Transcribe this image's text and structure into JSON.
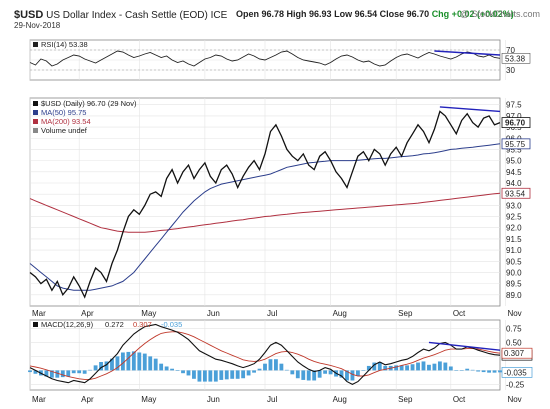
{
  "header": {
    "symbol": "$USD",
    "name": "US Dollar Index - Cash Settle (EOD) ICE",
    "date": "29-Nov-2018",
    "brand": "@ StockCharts.com",
    "open": "Open 96.78",
    "high": "High 96.93",
    "low": "Low 96.54",
    "close": "Close 96.70",
    "change": "Chg +0.02 (+0.02%)"
  },
  "colors": {
    "price": "#111111",
    "ma50": "#2c3e8c",
    "ma200": "#b03040",
    "rsi": "#222222",
    "macd": "#111111",
    "signal": "#c0392b",
    "hist": "#4a9fd8",
    "trend": "#2222bb",
    "grid": "#e4e4e4"
  },
  "chart_data": [
    {
      "type": "line",
      "panel": "rsi",
      "legend": "RSI(14) 53.38",
      "ylim": [
        10,
        90
      ],
      "yticks": [
        "70",
        "50",
        "30"
      ],
      "last": "53.38",
      "reference_lines": [
        70,
        30
      ],
      "values": [
        45,
        40,
        52,
        48,
        38,
        42,
        50,
        55,
        60,
        58,
        52,
        48,
        44,
        50,
        56,
        62,
        68,
        66,
        60,
        55,
        58,
        62,
        65,
        60,
        55,
        58,
        50,
        45,
        48,
        42,
        38,
        45,
        52,
        55,
        60,
        58,
        52,
        48,
        50,
        56,
        62,
        58,
        52,
        50,
        55,
        60,
        66,
        68,
        62,
        55,
        50,
        48,
        46,
        44,
        40,
        45,
        52,
        58,
        60,
        56,
        50,
        46,
        48,
        42,
        38,
        40,
        48,
        55,
        60,
        62,
        58,
        54,
        60,
        65,
        62,
        58,
        55,
        52,
        56,
        62,
        66,
        64,
        58,
        56,
        60,
        55,
        53.38
      ],
      "trendline": [
        [
          74,
          68
        ],
        [
          86,
          60
        ]
      ]
    },
    {
      "type": "line",
      "panel": "price",
      "legend": [
        "$USD (Daily) 96.70 (29 Nov)",
        "MA(50) 95.75",
        "MA(200) 93.54",
        "Volume undef"
      ],
      "ylim": [
        88.5,
        97.8
      ],
      "yticks": [
        "97.5",
        "97.0",
        "96.5",
        "96.0",
        "95.5",
        "95.0",
        "94.5",
        "94.0",
        "93.5",
        "93.0",
        "92.5",
        "92.0",
        "91.5",
        "91.0",
        "90.5",
        "90.0",
        "89.5",
        "89.0"
      ],
      "series": [
        {
          "name": "$USD (Daily) 96.70 (29 Nov)",
          "last": "96.70",
          "values": [
            90.0,
            89.8,
            89.5,
            89.7,
            89.2,
            89.6,
            89.0,
            89.3,
            89.8,
            89.4,
            88.9,
            89.6,
            90.2,
            90.0,
            89.6,
            90.4,
            91.0,
            91.8,
            92.5,
            92.8,
            92.6,
            93.0,
            93.5,
            93.6,
            93.4,
            94.2,
            94.6,
            94.0,
            94.5,
            94.8,
            94.2,
            94.6,
            94.9,
            94.3,
            94.0,
            94.6,
            94.8,
            94.4,
            93.8,
            94.3,
            94.7,
            95.0,
            94.6,
            95.3,
            96.3,
            96.6,
            96.1,
            95.5,
            95.2,
            95.0,
            95.3,
            94.8,
            94.6,
            95.2,
            95.4,
            95.0,
            94.5,
            94.2,
            93.8,
            94.5,
            95.2,
            95.4,
            95.0,
            95.5,
            95.3,
            94.8,
            95.3,
            95.6,
            95.2,
            95.8,
            96.2,
            96.6,
            96.3,
            95.8,
            96.4,
            97.2,
            97.0,
            96.6,
            96.2,
            96.8,
            97.1,
            96.7,
            96.5,
            96.9,
            97.0,
            96.6,
            96.7
          ]
        },
        {
          "name": "MA(50) 95.75",
          "last": "95.75",
          "values": [
            90.4,
            90.2,
            90.0,
            89.8,
            89.6,
            89.4,
            89.3,
            89.25,
            89.2,
            89.2,
            89.2,
            89.2,
            89.25,
            89.3,
            89.35,
            89.4,
            89.5,
            89.6,
            89.8,
            90.0,
            90.3,
            90.6,
            90.9,
            91.2,
            91.5,
            91.8,
            92.1,
            92.4,
            92.7,
            92.95,
            93.2,
            93.4,
            93.6,
            93.75,
            93.85,
            93.95,
            94.0,
            94.05,
            94.1,
            94.15,
            94.2,
            94.25,
            94.3,
            94.35,
            94.4,
            94.5,
            94.6,
            94.7,
            94.75,
            94.8,
            94.85,
            94.9,
            94.92,
            94.95,
            94.97,
            95.0,
            95.0,
            95.0,
            95.0,
            95.0,
            95.02,
            95.04,
            95.06,
            95.08,
            95.1,
            95.1,
            95.12,
            95.15,
            95.18,
            95.2,
            95.22,
            95.25,
            95.3,
            95.32,
            95.35,
            95.4,
            95.45,
            95.5,
            95.52,
            95.55,
            95.58,
            95.6,
            95.63,
            95.66,
            95.69,
            95.72,
            95.75
          ]
        },
        {
          "name": "MA(200) 93.54",
          "last": "93.54",
          "values": [
            93.3,
            93.2,
            93.1,
            93.0,
            92.9,
            92.8,
            92.7,
            92.6,
            92.5,
            92.4,
            92.3,
            92.2,
            92.1,
            92.0,
            91.95,
            91.9,
            91.85,
            91.82,
            91.8,
            91.8,
            91.8,
            91.8,
            91.82,
            91.85,
            91.88,
            91.9,
            91.93,
            91.96,
            92.0,
            92.03,
            92.06,
            92.1,
            92.13,
            92.16,
            92.2,
            92.23,
            92.26,
            92.3,
            92.33,
            92.36,
            92.4,
            92.43,
            92.46,
            92.5,
            92.52,
            92.55,
            92.58,
            92.6,
            92.63,
            92.66,
            92.68,
            92.7,
            92.72,
            92.74,
            92.76,
            92.78,
            92.8,
            92.82,
            92.84,
            92.86,
            92.88,
            92.9,
            92.92,
            92.94,
            92.96,
            92.98,
            93.0,
            93.02,
            93.04,
            93.06,
            93.08,
            93.1,
            93.13,
            93.16,
            93.19,
            93.22,
            93.25,
            93.28,
            93.31,
            93.34,
            93.37,
            93.4,
            93.43,
            93.46,
            93.49,
            93.52,
            93.54
          ]
        }
      ],
      "trendline": [
        [
          75,
          97.4
        ],
        [
          86,
          97.2
        ]
      ]
    },
    {
      "type": "line",
      "panel": "macd",
      "legend": [
        "MACD(12,26,9)",
        "0.272",
        "0.307",
        "-0.035"
      ],
      "ylim": [
        -0.35,
        0.9
      ],
      "yticks": [
        "0.75",
        "0.50",
        "0.25",
        "0.00",
        "-0.25"
      ],
      "last": [
        "0.272",
        "0.307",
        "-0.035"
      ],
      "series": [
        {
          "name": "MACD(12,26,9)",
          "values": [
            0.05,
            0.0,
            -0.05,
            -0.1,
            -0.15,
            -0.18,
            -0.2,
            -0.22,
            -0.18,
            -0.2,
            -0.22,
            -0.15,
            -0.05,
            0.05,
            0.1,
            0.2,
            0.3,
            0.45,
            0.55,
            0.65,
            0.72,
            0.78,
            0.8,
            0.82,
            0.78,
            0.75,
            0.72,
            0.68,
            0.62,
            0.55,
            0.45,
            0.35,
            0.3,
            0.25,
            0.2,
            0.18,
            0.15,
            0.12,
            0.08,
            0.05,
            0.08,
            0.12,
            0.2,
            0.32,
            0.45,
            0.5,
            0.45,
            0.35,
            0.25,
            0.15,
            0.08,
            0.02,
            -0.02,
            0.0,
            0.05,
            0.02,
            -0.05,
            -0.1,
            -0.2,
            -0.25,
            -0.2,
            -0.1,
            0.0,
            0.1,
            0.15,
            0.1,
            0.12,
            0.15,
            0.18,
            0.2,
            0.25,
            0.32,
            0.38,
            0.35,
            0.4,
            0.48,
            0.5,
            0.45,
            0.38,
            0.38,
            0.42,
            0.4,
            0.36,
            0.33,
            0.3,
            0.28,
            0.272
          ]
        },
        {
          "name": "0.307",
          "values": [
            0.08,
            0.06,
            0.04,
            0.01,
            -0.02,
            -0.05,
            -0.08,
            -0.11,
            -0.13,
            -0.15,
            -0.16,
            -0.16,
            -0.14,
            -0.1,
            -0.06,
            -0.01,
            0.05,
            0.13,
            0.22,
            0.31,
            0.4,
            0.48,
            0.55,
            0.61,
            0.66,
            0.68,
            0.69,
            0.69,
            0.67,
            0.64,
            0.6,
            0.55,
            0.5,
            0.45,
            0.4,
            0.35,
            0.31,
            0.27,
            0.23,
            0.19,
            0.17,
            0.16,
            0.17,
            0.2,
            0.25,
            0.3,
            0.33,
            0.34,
            0.32,
            0.29,
            0.25,
            0.2,
            0.16,
            0.13,
            0.11,
            0.09,
            0.06,
            0.03,
            -0.02,
            -0.07,
            -0.1,
            -0.1,
            -0.08,
            -0.04,
            0.0,
            0.02,
            0.04,
            0.06,
            0.09,
            0.11,
            0.14,
            0.18,
            0.22,
            0.25,
            0.28,
            0.32,
            0.36,
            0.38,
            0.38,
            0.38,
            0.39,
            0.39,
            0.38,
            0.36,
            0.34,
            0.32,
            0.307
          ]
        },
        {
          "name": "-0.035",
          "values": [
            -0.03,
            -0.06,
            -0.09,
            -0.11,
            -0.13,
            -0.13,
            -0.12,
            -0.11,
            -0.05,
            -0.05,
            -0.06,
            0.01,
            0.09,
            0.15,
            0.16,
            0.21,
            0.25,
            0.32,
            0.33,
            0.34,
            0.32,
            0.3,
            0.25,
            0.21,
            0.12,
            0.07,
            0.03,
            -0.01,
            -0.05,
            -0.09,
            -0.15,
            -0.2,
            -0.2,
            -0.2,
            -0.2,
            -0.17,
            -0.16,
            -0.15,
            -0.15,
            -0.14,
            -0.09,
            -0.04,
            0.03,
            0.12,
            0.2,
            0.2,
            0.12,
            0.01,
            -0.07,
            -0.14,
            -0.17,
            -0.18,
            -0.18,
            -0.13,
            -0.06,
            -0.07,
            -0.11,
            -0.13,
            -0.18,
            -0.18,
            -0.1,
            0.0,
            0.08,
            0.14,
            0.15,
            0.08,
            0.08,
            0.09,
            0.09,
            0.09,
            0.11,
            0.14,
            0.16,
            0.1,
            0.12,
            0.16,
            0.14,
            0.07,
            0.0,
            0.0,
            0.03,
            0.01,
            -0.02,
            -0.03,
            -0.04,
            -0.04,
            -0.035
          ]
        }
      ],
      "trendline": [
        [
          73,
          0.5
        ],
        [
          86,
          0.36
        ]
      ]
    }
  ],
  "x_axis": {
    "labels": [
      "Mar",
      "Apr",
      "May",
      "Jun",
      "Jul",
      "Aug",
      "Sep",
      "Oct",
      "Nov"
    ],
    "positions": [
      0,
      9,
      20,
      32,
      43,
      55,
      67,
      77,
      87
    ]
  }
}
